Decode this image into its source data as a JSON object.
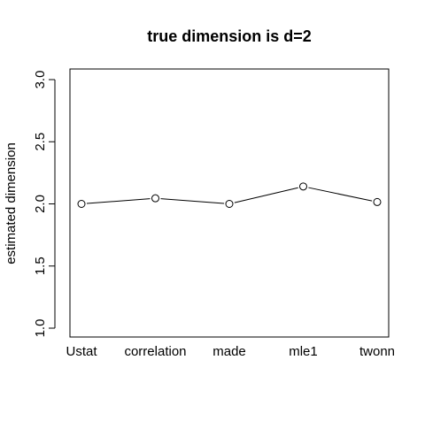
{
  "chart_data": {
    "type": "line",
    "title": "true dimension is d=2",
    "xlabel": "",
    "ylabel": "estimated dimension",
    "categories": [
      "Ustat",
      "correlation",
      "made",
      "mle1",
      "twonn"
    ],
    "values": [
      2.0,
      2.045,
      2.0,
      2.14,
      2.015
    ],
    "ylim": [
      1.0,
      3.0
    ],
    "yticks": [
      "1.0",
      "1.5",
      "2.0",
      "2.5",
      "3.0"
    ],
    "grid": false,
    "marker": "open-circle",
    "line_color": "#000000"
  }
}
